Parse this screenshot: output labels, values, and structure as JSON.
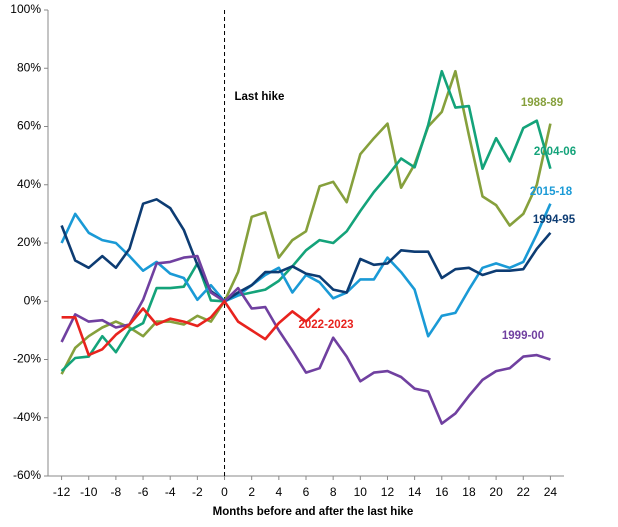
{
  "chart_data": {
    "type": "line",
    "x_label": "Months before and after the last hike",
    "x": [
      -12,
      -11,
      -10,
      -9,
      -8,
      -7,
      -6,
      -5,
      -4,
      -3,
      -2,
      -1,
      0,
      1,
      2,
      3,
      4,
      5,
      6,
      7,
      8,
      9,
      10,
      11,
      12,
      13,
      14,
      15,
      16,
      17,
      18,
      19,
      20,
      21,
      22,
      23,
      24
    ],
    "xlim": [
      -13,
      25
    ],
    "xticks": [
      -12,
      -10,
      -8,
      -6,
      -4,
      -2,
      0,
      2,
      4,
      6,
      8,
      10,
      12,
      14,
      16,
      18,
      20,
      22,
      24
    ],
    "ylim": [
      -60,
      100
    ],
    "yticks": [
      {
        "value": -60,
        "label": "-60%"
      },
      {
        "value": -40,
        "label": "-40%"
      },
      {
        "value": -20,
        "label": "-20%"
      },
      {
        "value": 0,
        "label": "0%"
      },
      {
        "value": 20,
        "label": "20%"
      },
      {
        "value": 40,
        "label": "40%"
      },
      {
        "value": 60,
        "label": "60%"
      },
      {
        "value": 80,
        "label": "80%"
      },
      {
        "value": 100,
        "label": "100%"
      }
    ],
    "grid": false,
    "annotations": [
      {
        "text": "Last hike",
        "x": 0
      }
    ],
    "series": [
      {
        "name": "1988-89",
        "color": "#86a03c",
        "values": [
          -25,
          -16,
          -12,
          -9,
          -7,
          -9,
          -12,
          -7,
          -7,
          -8,
          -5,
          -7,
          0,
          10,
          29,
          30.5,
          15,
          21,
          24,
          39.5,
          41,
          34,
          50.5,
          56,
          61,
          39,
          47,
          60,
          65,
          79,
          57,
          36,
          33,
          26,
          30,
          40,
          61
        ]
      },
      {
        "name": "2004-06",
        "color": "#14a37a",
        "values": [
          -24,
          -19.5,
          -19,
          -12,
          -17.5,
          -10,
          -7.5,
          4.5,
          4.5,
          5,
          13,
          0.3,
          0,
          2,
          3,
          4,
          7,
          12,
          17.5,
          21,
          20,
          24,
          31,
          37.5,
          43,
          49,
          46,
          60.5,
          79,
          66.5,
          67,
          45.5,
          56,
          48,
          59.5,
          62,
          45.5
        ]
      },
      {
        "name": "2015-18",
        "color": "#1a9ad6",
        "values": [
          20,
          30,
          23.5,
          21,
          20,
          15.5,
          10.5,
          13.5,
          9.5,
          8,
          0.5,
          5.5,
          0,
          2,
          5.5,
          9,
          11.5,
          3,
          9,
          6.5,
          1,
          3,
          7.5,
          7.5,
          15,
          10,
          4,
          -12,
          -5,
          -4,
          4,
          11.5,
          13,
          11.5,
          13.5,
          23,
          33.5
        ]
      },
      {
        "name": "1994-95",
        "color": "#0d3c73",
        "values": [
          26,
          14,
          11.5,
          15.5,
          11.5,
          18,
          33.5,
          35,
          32,
          24.5,
          12.5,
          3.5,
          0,
          3,
          5.5,
          10,
          10,
          12,
          9.5,
          8.5,
          4,
          3,
          14.5,
          12.5,
          13,
          17.5,
          17,
          17,
          8,
          11,
          11.5,
          9,
          10.5,
          10.5,
          11,
          18,
          23.5
        ]
      },
      {
        "name": "1999-00",
        "color": "#7040a0",
        "values": [
          -14,
          -4.5,
          -7,
          -6.5,
          -9,
          -8,
          0.5,
          13,
          13.5,
          15,
          15.5,
          3,
          0,
          4.5,
          -2.5,
          -2,
          -10,
          -17,
          -24.5,
          -23,
          -12.5,
          -19,
          -27.5,
          -24.5,
          -24,
          -26,
          -30,
          -31,
          -42,
          -38.5,
          -32.5,
          -27,
          -24,
          -23,
          -19,
          -18.5,
          -20
        ]
      },
      {
        "name": "2022-2023",
        "color": "#e8231e",
        "values": [
          -5.5,
          -5.5,
          -18.5,
          -16.5,
          -11.5,
          -8,
          -2.5,
          -8,
          -6,
          -7,
          -8.5,
          -5.5,
          0,
          -7,
          -10,
          -13,
          -7.5,
          -3.5,
          -7,
          -2.5,
          null,
          null,
          null,
          null,
          null,
          null,
          null,
          null,
          null,
          null,
          null,
          null,
          null,
          null,
          null,
          null,
          null
        ]
      }
    ]
  }
}
